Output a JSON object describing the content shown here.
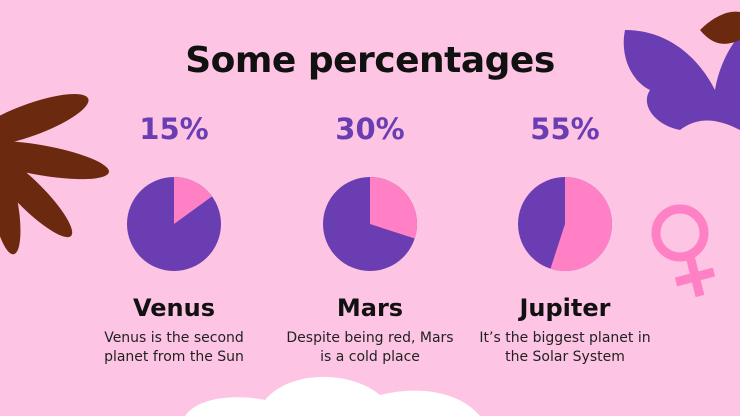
{
  "title": "Some percentages",
  "chart_data": [
    {
      "type": "pie",
      "title": "Venus",
      "description": "Venus is the second planet from the Sun",
      "values": [
        15
      ],
      "value_labels": [
        "15%"
      ],
      "color": "#ff80c4",
      "base_color": "#6a3db3"
    },
    {
      "type": "pie",
      "title": "Mars",
      "description": "Despite being red, Mars is a cold place",
      "values": [
        30
      ],
      "value_labels": [
        "30%"
      ],
      "color": "#ff80c4",
      "base_color": "#6a3db3"
    },
    {
      "type": "pie",
      "title": "Jupiter",
      "description": "It’s the biggest planet in the Solar System",
      "values": [
        55
      ],
      "value_labels": [
        "55%"
      ],
      "color": "#ff80c4",
      "base_color": "#6a3db3"
    }
  ]
}
